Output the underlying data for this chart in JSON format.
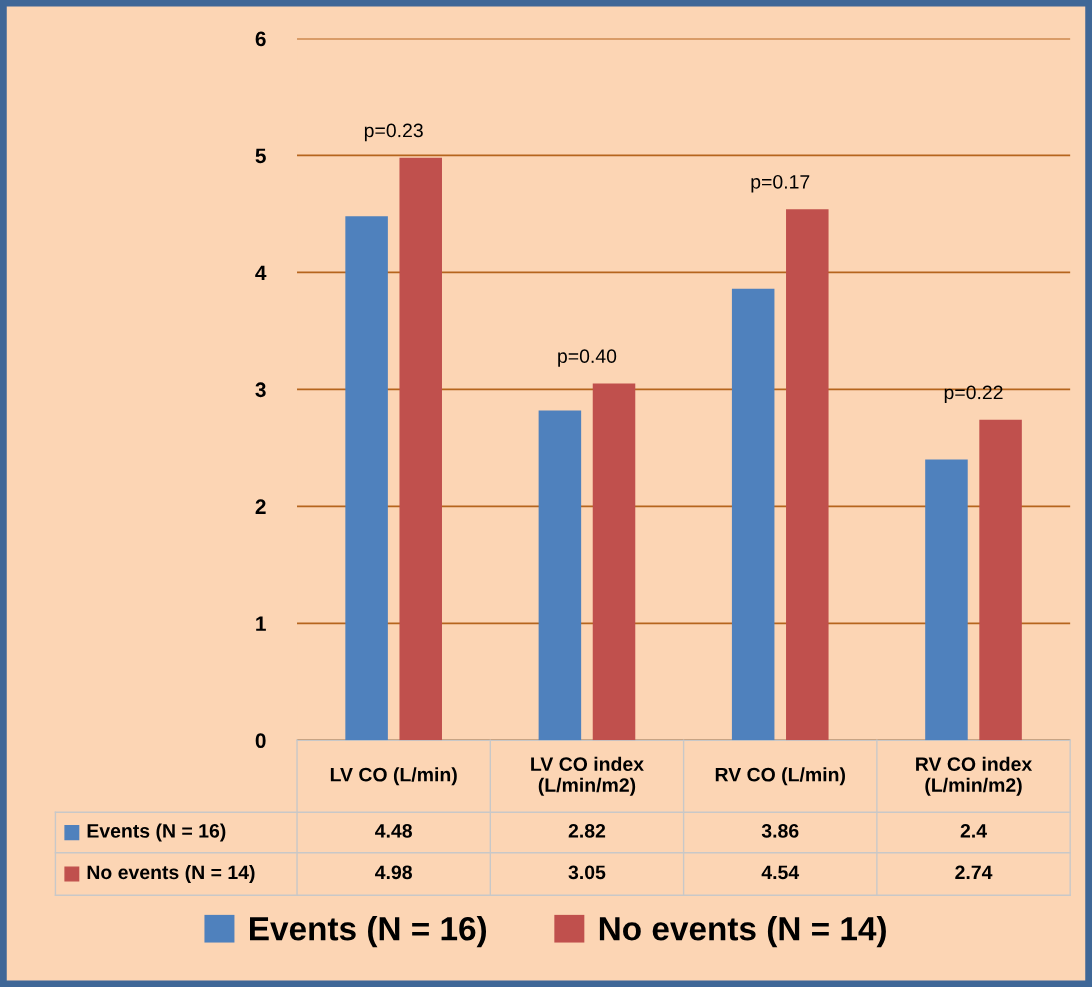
{
  "chart_data": {
    "type": "bar",
    "categories": [
      "LV CO (L/min)",
      "LV CO index\n(L/min/m2)",
      "RV CO (L/min)",
      "RV CO index\n(L/min/m2)"
    ],
    "series": [
      {
        "name": "Events (N = 16)",
        "color": "#4f81bd",
        "values": [
          4.48,
          2.82,
          3.86,
          2.4
        ]
      },
      {
        "name": "No events (N = 14)",
        "color": "#c0504d",
        "values": [
          4.98,
          3.05,
          4.54,
          2.74
        ]
      }
    ],
    "ylim": [
      0,
      6
    ],
    "yticks": [
      0,
      1,
      2,
      3,
      4,
      5,
      6
    ],
    "grid": "y",
    "legend": "bottom",
    "data_labels": true,
    "annotations": [
      "p=0.23",
      "p=0.40",
      "p=0.17",
      "p=0.22"
    ]
  }
}
